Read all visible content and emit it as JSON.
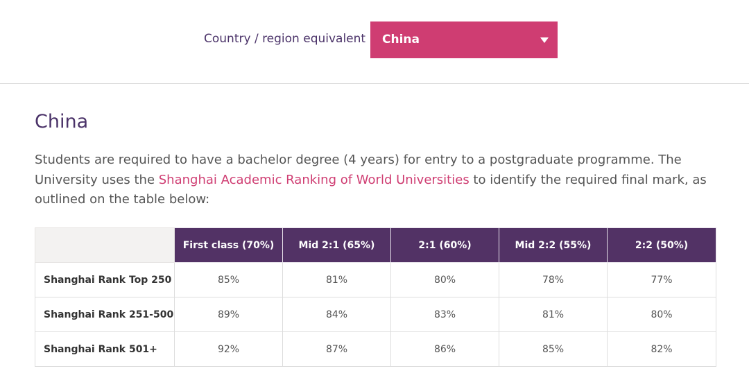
{
  "filter": {
    "label": "Country / region equivalent",
    "selected": "China"
  },
  "section": {
    "title": "China",
    "intro_before": "Students are required to have a bachelor degree (4 years) for entry to a postgraduate programme. The University uses the ",
    "intro_link": "Shanghai Academic Ranking of World Universities",
    "intro_after": " to identify the required final mark, as outlined on the table below:"
  },
  "table": {
    "corner": "",
    "columns": [
      "First class (70%)",
      "Mid 2:1 (65%)",
      "2:1 (60%)",
      "Mid 2:2 (55%)",
      "2:2 (50%)"
    ],
    "rows": [
      {
        "label": "Shanghai Rank Top 250",
        "values": [
          "85%",
          "81%",
          "80%",
          "78%",
          "77%"
        ]
      },
      {
        "label": "Shanghai Rank 251-500",
        "values": [
          "89%",
          "84%",
          "83%",
          "81%",
          "80%"
        ]
      },
      {
        "label": "Shanghai Rank 501+",
        "values": [
          "92%",
          "87%",
          "86%",
          "85%",
          "82%"
        ]
      }
    ]
  },
  "colors": {
    "accent": "#cf3d72",
    "header_purple": "#523265",
    "title_purple": "#4b3369"
  },
  "icons": {
    "dropdown": "caret-down-icon"
  }
}
